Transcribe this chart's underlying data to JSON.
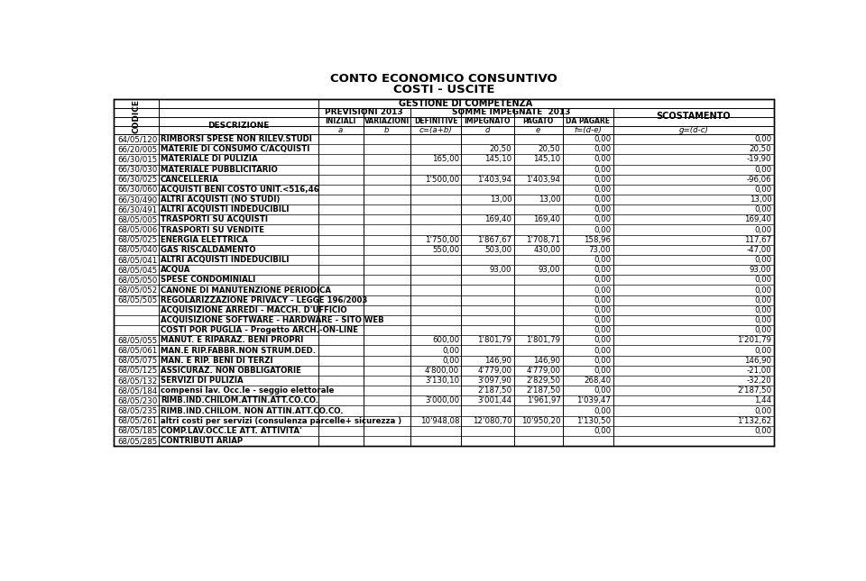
{
  "title1": "CONTO ECONOMICO CONSUNTIVO",
  "title2": "COSTI - USCITE",
  "header_gestione": "GESTIONE DI COMPETENZA",
  "header_prev": "PREVISIONI 2013",
  "header_somme": "SOMME IMPEGNATE  2013",
  "header_scost": "SCOSTAMENTO",
  "col_headers": [
    "INIZIALI",
    "VARIAZIONI",
    "DEFINITIVE",
    "IMPEGNATO",
    "PAGATO",
    "DA PAGARE"
  ],
  "col_subheaders": [
    "a",
    "b",
    "c=(a+b)",
    "d",
    "e",
    "f=(d-e)",
    "g=(d-c)"
  ],
  "rows": [
    {
      "code": "64/05/120",
      "desc": "RIMBORSI SPESE NON RILEV.STUDI",
      "a": "",
      "b": "",
      "c": "",
      "d": "",
      "e": "",
      "f": "0,00",
      "g": "0,00"
    },
    {
      "code": "66/20/005",
      "desc": "MATERIE DI CONSUMO C/ACQUISTI",
      "a": "",
      "b": "",
      "c": "",
      "d": "20,50",
      "e": "20,50",
      "f": "0,00",
      "g": "20,50"
    },
    {
      "code": "66/30/015",
      "desc": "MATERIALE DI PULIZIA",
      "a": "",
      "b": "",
      "c": "165,00",
      "d": "145,10",
      "e": "145,10",
      "f": "0,00",
      "g": "-19,90"
    },
    {
      "code": "66/30/030",
      "desc": "MATERIALE PUBBLICITARIO",
      "a": "",
      "b": "",
      "c": "",
      "d": "",
      "e": "",
      "f": "0,00",
      "g": "0,00"
    },
    {
      "code": "66/30/025",
      "desc": "CANCELLERIA",
      "a": "",
      "b": "",
      "c": "1'500,00",
      "d": "1'403,94",
      "e": "1'403,94",
      "f": "0,00",
      "g": "-96,06"
    },
    {
      "code": "66/30/060",
      "desc": "ACQUISTI BENI COSTO UNIT.<516,46",
      "a": "",
      "b": "",
      "c": "",
      "d": "",
      "e": "",
      "f": "0,00",
      "g": "0,00"
    },
    {
      "code": "66/30/490",
      "desc": "ALTRI ACQUISTI (NO STUDI)",
      "a": "",
      "b": "",
      "c": "",
      "d": "13,00",
      "e": "13,00",
      "f": "0,00",
      "g": "13,00"
    },
    {
      "code": "66/30/491",
      "desc": "ALTRI ACQUISTI INDEDUCIBILI",
      "a": "",
      "b": "",
      "c": "",
      "d": "",
      "e": "",
      "f": "0,00",
      "g": "0,00"
    },
    {
      "code": "68/05/005",
      "desc": "TRASPORTI SU ACQUISTI",
      "a": "",
      "b": "",
      "c": "",
      "d": "169,40",
      "e": "169,40",
      "f": "0,00",
      "g": "169,40"
    },
    {
      "code": "68/05/006",
      "desc": "TRASPORTI SU VENDITE",
      "a": "",
      "b": "",
      "c": "",
      "d": "",
      "e": "",
      "f": "0,00",
      "g": "0,00"
    },
    {
      "code": "68/05/025",
      "desc": "ENERGIA ELETTRICA",
      "a": "",
      "b": "",
      "c": "1'750,00",
      "d": "1'867,67",
      "e": "1'708,71",
      "f": "158,96",
      "g": "117,67"
    },
    {
      "code": "68/05/040",
      "desc": "GAS RISCALDAMENTO",
      "a": "",
      "b": "",
      "c": "550,00",
      "d": "503,00",
      "e": "430,00",
      "f": "73,00",
      "g": "-47,00"
    },
    {
      "code": "68/05/041",
      "desc": "ALTRI ACQUISTI INDEDUCIBILI",
      "a": "",
      "b": "",
      "c": "",
      "d": "",
      "e": "",
      "f": "0,00",
      "g": "0,00"
    },
    {
      "code": "68/05/045",
      "desc": "ACQUA",
      "a": "",
      "b": "",
      "c": "",
      "d": "93,00",
      "e": "93,00",
      "f": "0,00",
      "g": "93,00"
    },
    {
      "code": "68/05/050",
      "desc": "SPESE CONDOMINIALI",
      "a": "",
      "b": "",
      "c": "",
      "d": "",
      "e": "",
      "f": "0,00",
      "g": "0,00"
    },
    {
      "code": "68/05/052",
      "desc": "CANONE DI MANUTENZIONE PERIODICA",
      "a": "",
      "b": "",
      "c": "",
      "d": "",
      "e": "",
      "f": "0,00",
      "g": "0,00"
    },
    {
      "code": "68/05/505",
      "desc": "REGOLARIZZAZIONE PRIVACY - LEGGE 196/2003",
      "a": "",
      "b": "",
      "c": "",
      "d": "",
      "e": "",
      "f": "0,00",
      "g": "0,00"
    },
    {
      "code": "",
      "desc": "ACQUISIZIONE ARREDI - MACCH. D'UFFICIO",
      "a": "",
      "b": "",
      "c": "",
      "d": "",
      "e": "",
      "f": "0,00",
      "g": "0,00"
    },
    {
      "code": "",
      "desc": "ACQUISIZIONE SOFTWARE - HARDWARE - SITO WEB",
      "a": "",
      "b": "",
      "c": "",
      "d": "",
      "e": "",
      "f": "0,00",
      "g": "0,00"
    },
    {
      "code": "",
      "desc": "COSTI POR PUGLIA - Progetto ARCH.-ON-LINE",
      "a": "",
      "b": "",
      "c": "",
      "d": "",
      "e": "",
      "f": "0,00",
      "g": "0,00"
    },
    {
      "code": "68/05/055",
      "desc": "MANUT. E RIPARAZ. BENI PROPRI",
      "a": "",
      "b": "",
      "c": "600,00",
      "d": "1'801,79",
      "e": "1'801,79",
      "f": "0,00",
      "g": "1'201,79"
    },
    {
      "code": "68/05/061",
      "desc": "MAN.E RIP.FABBR.NON STRUM.DED.",
      "a": "",
      "b": "",
      "c": "0,00",
      "d": "",
      "e": "",
      "f": "0,00",
      "g": "0,00"
    },
    {
      "code": "68/05/075",
      "desc": "MAN. E RIP. BENI DI TERZI",
      "a": "",
      "b": "",
      "c": "0,00",
      "d": "146,90",
      "e": "146,90",
      "f": "0,00",
      "g": "146,90"
    },
    {
      "code": "68/05/125",
      "desc": "ASSICURAZ. NON OBBLIGATORIE",
      "a": "",
      "b": "",
      "c": "4'800,00",
      "d": "4'779,00",
      "e": "4'779,00",
      "f": "0,00",
      "g": "-21,00"
    },
    {
      "code": "68/05/132",
      "desc": "SERVIZI DI PULIZIA",
      "a": "",
      "b": "",
      "c": "3'130,10",
      "d": "3'097,90",
      "e": "2'829,50",
      "f": "268,40",
      "g": "-32,20"
    },
    {
      "code": "68/05/184",
      "desc": "compensi lav. Occ.le - seggio elettorale",
      "a": "",
      "b": "",
      "c": "",
      "d": "2'187,50",
      "e": "2'187,50",
      "f": "0,00",
      "g": "2'187,50"
    },
    {
      "code": "68/05/230",
      "desc": "RIMB.IND.CHILOM.ATTIN.ATT.CO.CO.",
      "a": "",
      "b": "",
      "c": "3'000,00",
      "d": "3'001,44",
      "e": "1'961,97",
      "f": "1'039,47",
      "g": "1,44"
    },
    {
      "code": "68/05/235",
      "desc": "RIMB.IND.CHILOM. NON ATTIN.ATT.CO.CO.",
      "a": "",
      "b": "",
      "c": "",
      "d": "",
      "e": "",
      "f": "0,00",
      "g": "0,00"
    },
    {
      "code": "68/05/261",
      "desc": "altri costi per servizi (consulenza parcelle+ sicurezza )",
      "a": "",
      "b": "",
      "c": "10'948,08",
      "d": "12'080,70",
      "e": "10'950,20",
      "f": "1'130,50",
      "g": "1'132,62"
    },
    {
      "code": "68/05/185",
      "desc": "COMP.LAV.OCC.LE ATT. ATTIVITA'",
      "a": "",
      "b": "",
      "c": "",
      "d": "",
      "e": "",
      "f": "0,00",
      "g": "0,00"
    },
    {
      "code": "68/05/285",
      "desc": "CONTRIBUTI ARIAP",
      "a": "",
      "b": "",
      "c": "",
      "d": "",
      "e": "",
      "f": "",
      "g": ""
    }
  ],
  "bg_color": "#ffffff",
  "line_color": "#000000",
  "text_color": "#000000",
  "font_size": 6.2,
  "header_font_size": 7.0,
  "title_font_size": 9.5
}
